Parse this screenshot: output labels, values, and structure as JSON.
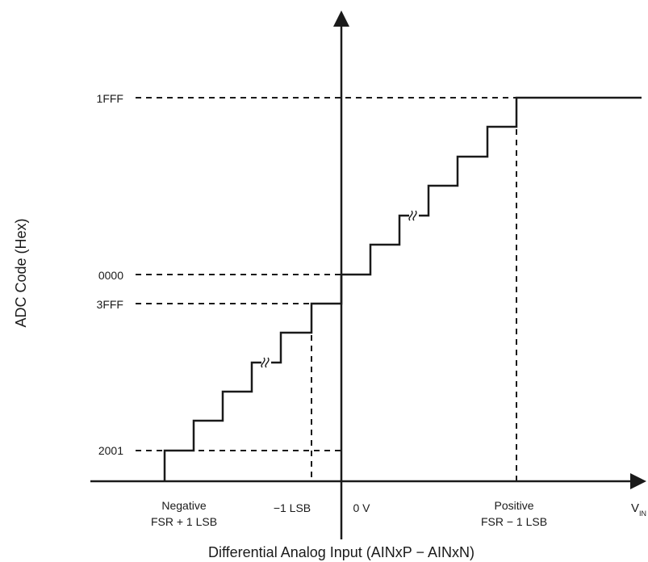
{
  "chart_data": {
    "type": "line",
    "title": "",
    "xlabel": "Differential Analog Input (AINxP − AINxN)",
    "ylabel": "ADC Code (Hex)",
    "x_tick_labels": [
      {
        "id": "neg-fsr",
        "lines": [
          "Negative",
          "FSR + 1 LSB"
        ]
      },
      {
        "id": "minus-1lsb",
        "lines": [
          "−1 LSB"
        ]
      },
      {
        "id": "zero-v",
        "lines": [
          "0 V"
        ]
      },
      {
        "id": "pos-fsr",
        "lines": [
          "Positive",
          "FSR − 1 LSB"
        ]
      }
    ],
    "x_axis_end_label": {
      "main": "V",
      "sub": "IN"
    },
    "y_tick_labels": [
      "2001",
      "3FFF",
      "0000",
      "1FFF"
    ],
    "transfer_function": {
      "description_points": [
        {
          "x": "Negative FSR + 1 LSB",
          "code": "2001"
        },
        {
          "x": "−1 LSB",
          "code": "3FFF"
        },
        {
          "x": "0 V",
          "code": "0000"
        },
        {
          "x": "Positive FSR − 1 LSB",
          "code": "1FFF"
        }
      ],
      "shape": "staircase",
      "axis_breaks": 2
    }
  }
}
